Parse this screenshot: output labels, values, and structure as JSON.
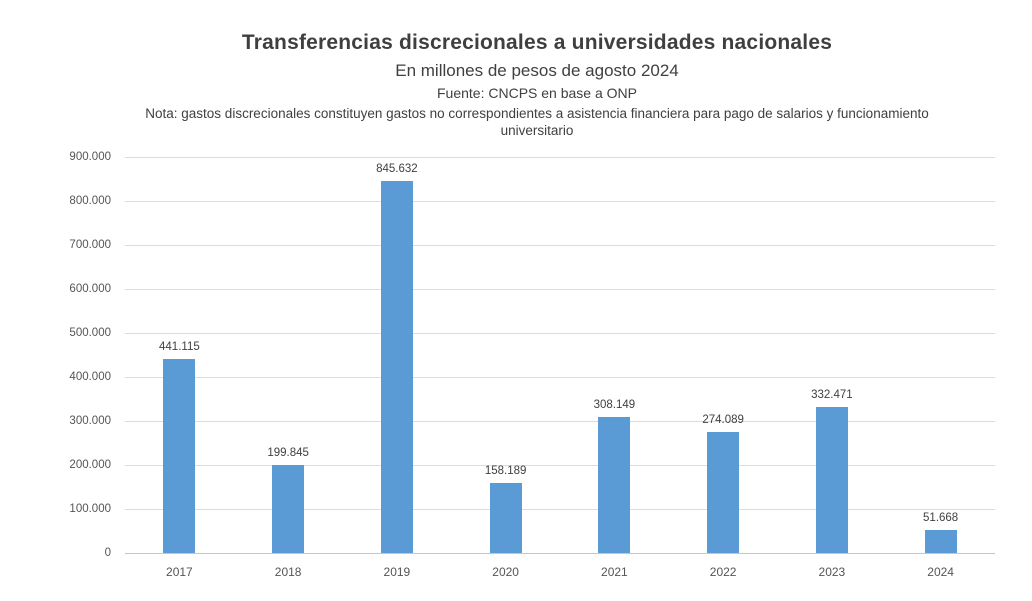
{
  "header": {
    "title": "Transferencias discrecionales a universidades nacionales",
    "subtitle": "En millones de pesos de agosto 2024",
    "source": "Fuente: CNCPS en base a ONP",
    "note": "Nota: gastos discrecionales constituyen gastos no correspondientes a asistencia financiera para pago de salarios y funcionamiento universitario"
  },
  "chart_data": {
    "type": "bar",
    "title": "Transferencias discrecionales a universidades nacionales",
    "subtitle": "En millones de pesos de agosto 2024",
    "source": "Fuente: CNCPS en base a ONP",
    "note": "Nota: gastos discrecionales constituyen gastos no correspondientes a asistencia financiera para pago de salarios y funcionamiento universitario",
    "categories": [
      "2017",
      "2018",
      "2019",
      "2020",
      "2021",
      "2022",
      "2023",
      "2024"
    ],
    "values": [
      441115,
      199845,
      845632,
      158189,
      308149,
      274089,
      332471,
      51668
    ],
    "data_labels": [
      "441.115",
      "199.845",
      "845.632",
      "158.189",
      "308.149",
      "274.089",
      "332.471",
      "51.668"
    ],
    "xlabel": "",
    "ylabel": "",
    "ylim": [
      0,
      900000
    ],
    "y_ticks": [
      {
        "label": "900.000",
        "value": 900000
      },
      {
        "label": "800.000",
        "value": 800000
      },
      {
        "label": "700.000",
        "value": 700000
      },
      {
        "label": "600.000",
        "value": 600000
      },
      {
        "label": "500.000",
        "value": 500000
      },
      {
        "label": "400.000",
        "value": 400000
      },
      {
        "label": "300.000",
        "value": 300000
      },
      {
        "label": "200.000",
        "value": 200000
      },
      {
        "label": "100.000",
        "value": 100000
      },
      {
        "label": "0",
        "value": 0
      }
    ],
    "grid": true,
    "legend": false,
    "bar_color": "#5b9bd5"
  },
  "colors": {
    "bar": "#5b9bd5",
    "gridline": "#dcdcdc",
    "axis": "#c6c6c6",
    "title_text": "#3f3f3f",
    "body_text": "#404040",
    "tick_text": "#555555",
    "background": "#ffffff"
  }
}
